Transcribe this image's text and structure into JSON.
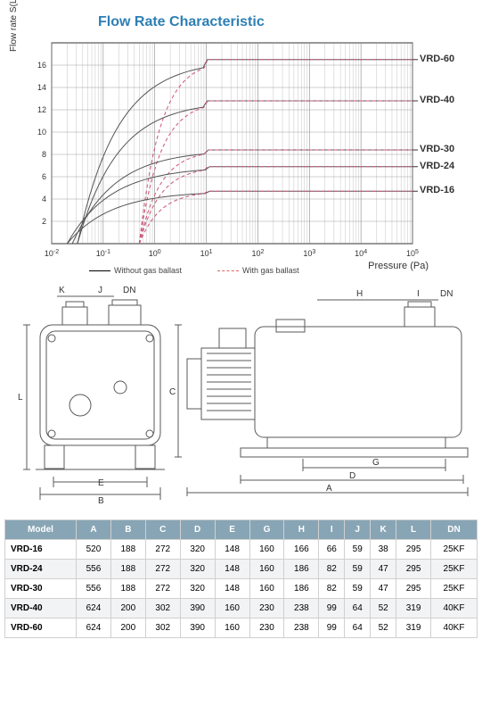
{
  "title": "Flow Rate Characteristic",
  "chart": {
    "ylabel": "Flow rate S(L/s)",
    "xlabel": "Pressure (Pa)",
    "xmin_exp": -2,
    "xmax_exp": 5,
    "ymin": 0,
    "ymax": 18,
    "ytick_step": 2,
    "plateau_start_log": 1.0,
    "xstarts_solid": [
      -1.5,
      -1.5,
      -1.6,
      -1.7,
      -1.7
    ],
    "xstarts_dashed": [
      -0.3,
      -0.3,
      -0.3,
      -0.3,
      -0.3
    ],
    "series": [
      {
        "label": "VRD-60",
        "flat": 16.5
      },
      {
        "label": "VRD-40",
        "flat": 12.8
      },
      {
        "label": "VRD-30",
        "flat": 8.4
      },
      {
        "label": "VRD-24",
        "flat": 6.9
      },
      {
        "label": "VRD-16",
        "flat": 4.7
      }
    ],
    "colors": {
      "line": "#555555",
      "dashed": "#cc5577",
      "grid": "#888888"
    },
    "legend": {
      "solid": "Without gas ballast",
      "dashed": "With gas ballast"
    }
  },
  "table": {
    "headers": [
      "Model",
      "A",
      "B",
      "C",
      "D",
      "E",
      "G",
      "H",
      "I",
      "J",
      "K",
      "L",
      "DN"
    ],
    "rows": [
      [
        "VRD-16",
        "520",
        "188",
        "272",
        "320",
        "148",
        "160",
        "166",
        "66",
        "59",
        "38",
        "295",
        "25KF"
      ],
      [
        "VRD-24",
        "556",
        "188",
        "272",
        "320",
        "148",
        "160",
        "186",
        "82",
        "59",
        "47",
        "295",
        "25KF"
      ],
      [
        "VRD-30",
        "556",
        "188",
        "272",
        "320",
        "148",
        "160",
        "186",
        "82",
        "59",
        "47",
        "295",
        "25KF"
      ],
      [
        "VRD-40",
        "624",
        "200",
        "302",
        "390",
        "160",
        "230",
        "238",
        "99",
        "64",
        "52",
        "319",
        "40KF"
      ],
      [
        "VRD-60",
        "624",
        "200",
        "302",
        "390",
        "160",
        "230",
        "238",
        "99",
        "64",
        "52",
        "319",
        "40KF"
      ]
    ]
  }
}
